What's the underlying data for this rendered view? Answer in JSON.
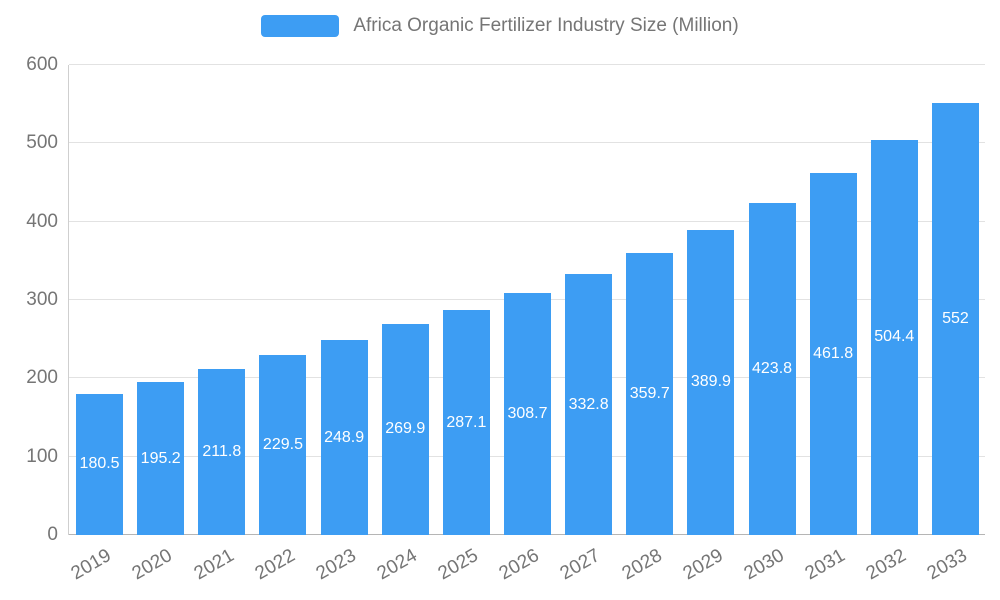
{
  "legend": {
    "label": "Africa Organic Fertilizer Industry Size (Million)"
  },
  "chart_data": {
    "type": "bar",
    "title": "Africa Organic Fertilizer Industry Size (Million)",
    "categories": [
      "2019",
      "2020",
      "2021",
      "2022",
      "2023",
      "2024",
      "2025",
      "2026",
      "2027",
      "2028",
      "2029",
      "2030",
      "2031",
      "2032",
      "2033"
    ],
    "values": [
      180.5,
      195.2,
      211.8,
      229.5,
      248.9,
      269.9,
      287.1,
      308.7,
      332.8,
      359.7,
      389.9,
      423.8,
      461.8,
      504.4,
      552
    ],
    "value_labels": [
      "180.5",
      "195.2",
      "211.8",
      "229.5",
      "248.9",
      "269.9",
      "287.1",
      "308.7",
      "332.8",
      "359.7",
      "389.9",
      "423.8",
      "461.8",
      "504.4",
      "552"
    ],
    "xlabel": "",
    "ylabel": "",
    "ylim": [
      0,
      600
    ],
    "yticks": [
      0,
      100,
      200,
      300,
      400,
      500,
      600
    ],
    "grid": true,
    "legend_position": "top",
    "bar_color": "#3D9DF3",
    "bar_label_color": "#ffffff",
    "axis_text_color": "#757575"
  }
}
